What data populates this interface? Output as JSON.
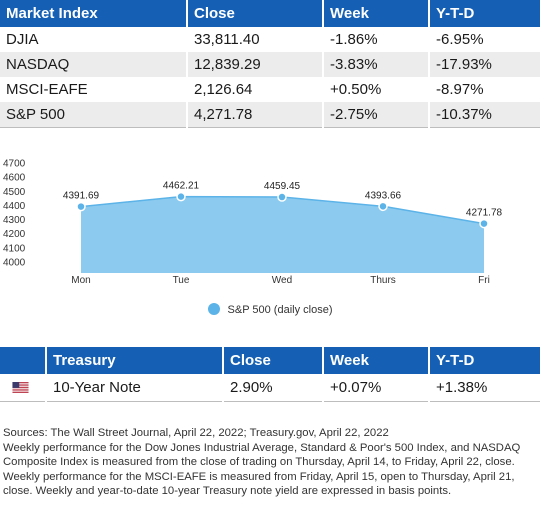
{
  "market_table": {
    "headers": [
      "Market Index",
      "Close",
      "Week",
      "Y-T-D"
    ],
    "rows": [
      [
        "DJIA",
        "33,811.40",
        "-1.86%",
        "-6.95%"
      ],
      [
        "NASDAQ",
        "12,839.29",
        "-3.83%",
        "-17.93%"
      ],
      [
        "MSCI-EAFE",
        "2,126.64",
        "+0.50%",
        "-8.97%"
      ],
      [
        "S&P 500",
        "4,271.78",
        "-2.75%",
        "-10.37%"
      ]
    ]
  },
  "chart_data": {
    "type": "area",
    "categories": [
      "Mon",
      "Tue",
      "Wed",
      "Thurs",
      "Fri"
    ],
    "series": [
      {
        "name": "S&P 500 (daily close)",
        "values": [
          4391.69,
          4462.21,
          4459.45,
          4393.66,
          4271.78
        ],
        "labels": [
          "4391.69",
          "4462.21",
          "4459.45",
          "4393.66",
          "4271.78"
        ]
      }
    ],
    "ylim": [
      4000,
      4700
    ],
    "yticks": [
      "4000",
      "4100",
      "4200",
      "4300",
      "4400",
      "4500",
      "4600",
      "4700"
    ],
    "color": "#5cb3e8",
    "fill_color": "#8ccbef",
    "legend_position": "bottom",
    "grid": false
  },
  "treasury_table": {
    "headers": [
      "",
      "Treasury",
      "Close",
      "Week",
      "Y-T-D"
    ],
    "row": {
      "flag_icon": "us-flag-icon",
      "name": "10-Year Note",
      "close": "2.90%",
      "week": "+0.07%",
      "ytd": "+1.38%"
    }
  },
  "notes": {
    "sources": "Sources: The Wall Street Journal, April 22, 2022; Treasury.gov, April 22, 2022",
    "body": "Weekly performance for the Dow Jones Industrial Average, Standard & Poor's 500 Index, and NASDAQ Composite Index is measured from the close of trading on Thursday, April 14, to Friday, April 22, close. Weekly performance for the MSCI-EAFE is measured from Friday, April 15, open to Thursday, April 21, close. Weekly and year-to-date 10-year Treasury note yield are expressed in basis points."
  },
  "colors": {
    "header_blue": "#1560b5",
    "row_alt": "#ececec"
  }
}
